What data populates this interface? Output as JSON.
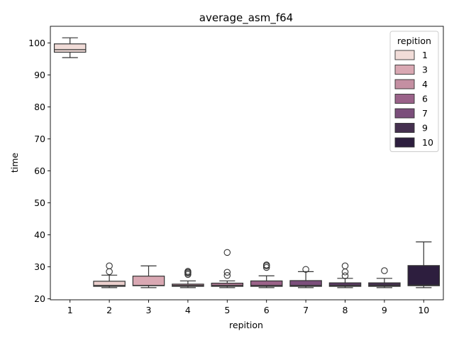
{
  "chart_data": {
    "type": "box",
    "title": "average_asm_f64",
    "xlabel": "repition",
    "ylabel": "time",
    "categories": [
      "1",
      "2",
      "3",
      "4",
      "5",
      "6",
      "7",
      "8",
      "9",
      "10"
    ],
    "ylim": [
      19.7,
      105.2
    ],
    "yticks": [
      20,
      30,
      40,
      50,
      60,
      70,
      80,
      90,
      100
    ],
    "grid": false,
    "legend": {
      "title": "repition",
      "placement": "top-right",
      "entries": [
        "1",
        "3",
        "4",
        "6",
        "7",
        "9",
        "10"
      ]
    },
    "series": [
      {
        "category": "1",
        "color": "#f1dcd8",
        "whisker_low": 95.4,
        "q1": 97.1,
        "median": 97.9,
        "q3": 99.7,
        "whisker_high": 101.6,
        "outliers": []
      },
      {
        "category": "2",
        "color": "#ebcfcd",
        "whisker_low": 23.5,
        "q1": 23.9,
        "median": 24.2,
        "q3": 25.5,
        "whisker_high": 27.4,
        "outliers": [
          28.5,
          30.3
        ]
      },
      {
        "category": "3",
        "color": "#d9a8b3",
        "whisker_low": 23.5,
        "q1": 24.1,
        "median": 24.2,
        "q3": 27.1,
        "whisker_high": 30.3,
        "outliers": []
      },
      {
        "category": "4",
        "color": "#c48fa2",
        "whisker_low": 23.5,
        "q1": 23.9,
        "median": 24.2,
        "q3": 24.6,
        "whisker_high": 25.6,
        "outliers": [
          27.6,
          28.0,
          28.3,
          28.6
        ]
      },
      {
        "category": "5",
        "color": "#b07a95",
        "whisker_low": 23.5,
        "q1": 23.9,
        "median": 24.2,
        "q3": 24.9,
        "whisker_high": 25.6,
        "outliers": [
          27.3,
          28.3,
          34.5
        ]
      },
      {
        "category": "6",
        "color": "#9a6289",
        "whisker_low": 23.5,
        "q1": 23.9,
        "median": 24.2,
        "q3": 25.6,
        "whisker_high": 27.2,
        "outliers": [
          29.8,
          30.3,
          30.6
        ]
      },
      {
        "category": "7",
        "color": "#7b4e7b",
        "whisker_low": 23.5,
        "q1": 23.9,
        "median": 24.2,
        "q3": 25.7,
        "whisker_high": 28.5,
        "outliers": [
          29.2
        ]
      },
      {
        "category": "8",
        "color": "#5a3a63",
        "whisker_low": 23.5,
        "q1": 23.9,
        "median": 24.2,
        "q3": 25.0,
        "whisker_high": 26.4,
        "outliers": [
          27.2,
          28.4,
          30.3
        ]
      },
      {
        "category": "9",
        "color": "#45304f",
        "whisker_low": 23.5,
        "q1": 23.9,
        "median": 24.2,
        "q3": 25.0,
        "whisker_high": 26.4,
        "outliers": [
          28.8
        ]
      },
      {
        "category": "10",
        "color": "#2d1e3e",
        "whisker_low": 23.5,
        "q1": 24.1,
        "median": 24.3,
        "q3": 30.4,
        "whisker_high": 37.8,
        "outliers": []
      }
    ],
    "legend_colors": [
      "#f1dcd8",
      "#d9a8b3",
      "#c48fa2",
      "#9a6289",
      "#7b4e7b",
      "#45304f",
      "#2d1e3e"
    ]
  }
}
